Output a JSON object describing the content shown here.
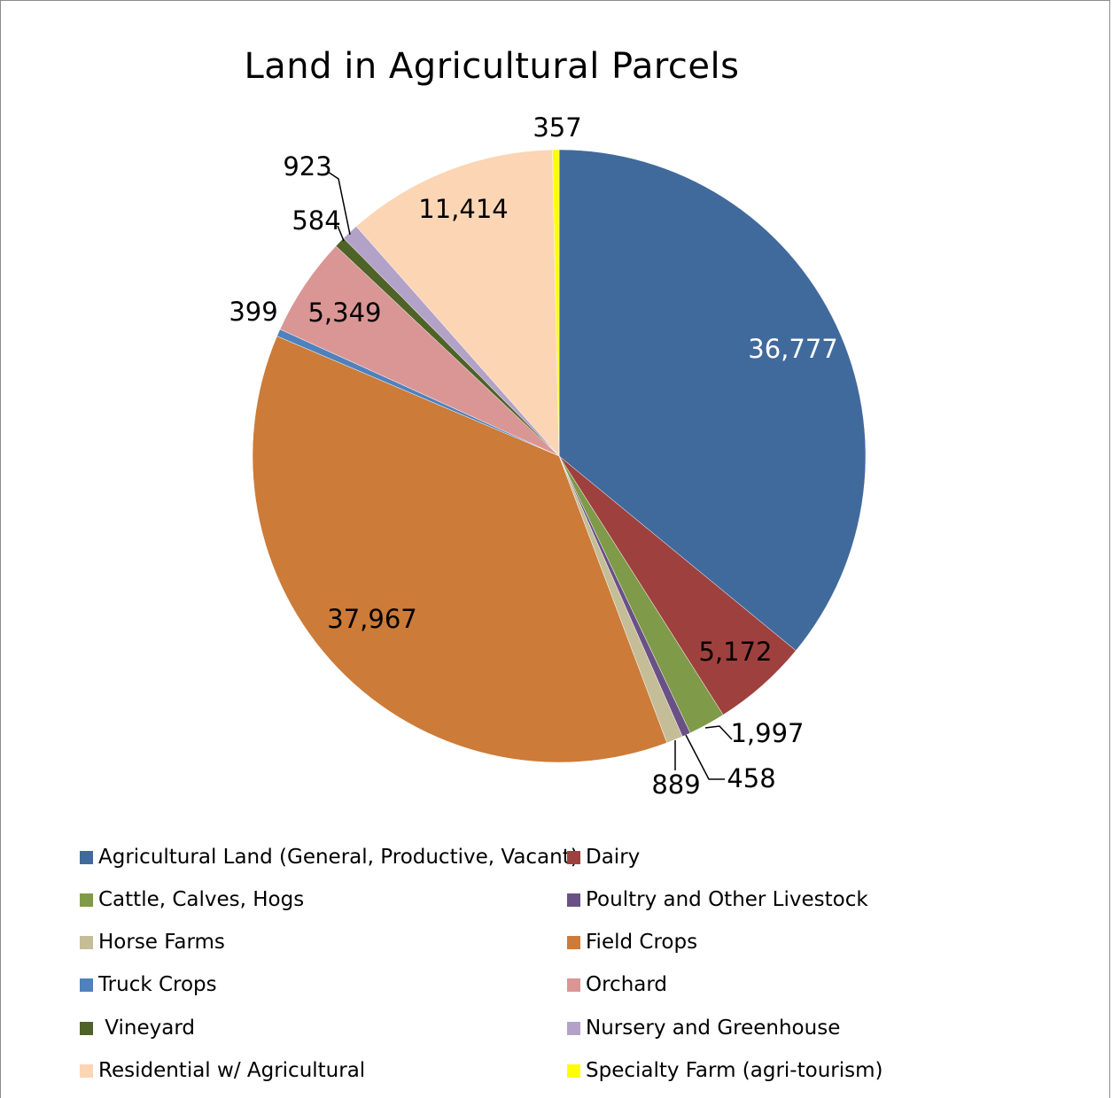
{
  "chart_data": {
    "type": "pie",
    "title": "Land in Agricultural Parcels",
    "slices": [
      {
        "name": "Agricultural Land (General, Productive, Vacant)",
        "value": 36777,
        "label": "36,777",
        "color": "#416a9c"
      },
      {
        "name": "Dairy",
        "value": 5172,
        "label": "5,172",
        "color": "#9e413e"
      },
      {
        "name": "Cattle, Calves, Hogs",
        "value": 1997,
        "label": "1,997",
        "color": "#7f9a48"
      },
      {
        "name": "Poultry and Other Livestock",
        "value": 458,
        "label": "458",
        "color": "#695185"
      },
      {
        "name": "Horse Farms",
        "value": 889,
        "label": "889",
        "color": "#c4bd97"
      },
      {
        "name": "Field Crops",
        "value": 37967,
        "label": "37,967",
        "color": "#cc7b38"
      },
      {
        "name": "Truck Crops",
        "value": 399,
        "label": "399",
        "color": "#4f81bd"
      },
      {
        "name": "Orchard",
        "value": 5349,
        "label": "5,349",
        "color": "#d99694"
      },
      {
        "name": " Vineyard",
        "value": 584,
        "label": "584",
        "color": "#4f6228"
      },
      {
        "name": "Nursery and Greenhouse",
        "value": 923,
        "label": "923",
        "color": "#b3a2c7"
      },
      {
        "name": "Residential w/ Agricultural",
        "value": 11414,
        "label": "11,414",
        "color": "#fcd5b5"
      },
      {
        "name": "Specialty Farm (agri-tourism)",
        "value": 357,
        "label": "357",
        "color": "#ffff00"
      }
    ],
    "legend_position": "bottom"
  }
}
